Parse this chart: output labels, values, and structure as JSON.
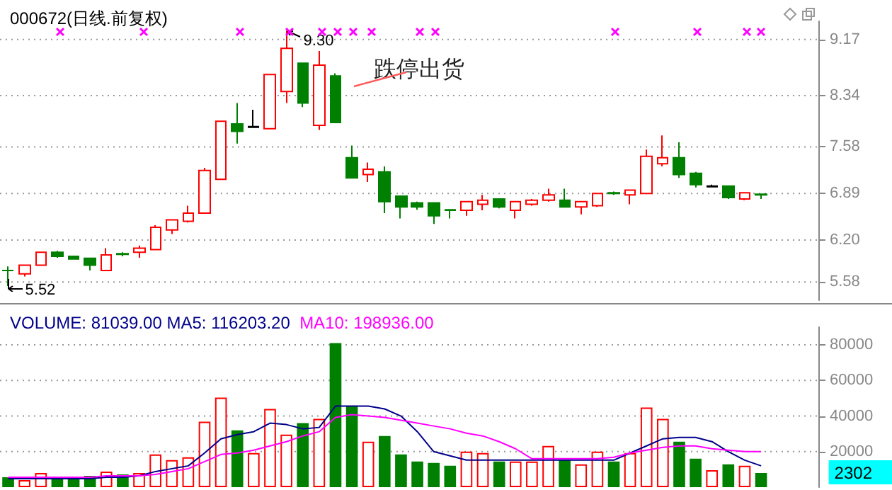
{
  "chart_data": [
    {
      "type": "candlestick",
      "title": "000672(日线.前复权)",
      "categories": [
        null,
        null,
        null,
        null,
        null,
        null,
        null,
        null,
        null,
        null,
        null,
        null,
        null,
        null,
        null,
        null,
        null,
        null,
        null,
        null,
        null,
        null,
        null,
        null,
        null,
        null,
        null,
        null,
        null,
        null,
        null,
        null,
        null,
        null,
        null,
        null,
        null,
        null,
        null,
        null,
        null,
        null,
        null,
        null,
        null,
        null,
        null,
        null,
        null,
        null
      ],
      "ohlc": [
        [
          5.75,
          5.81,
          5.52,
          5.75
        ],
        [
          5.7,
          5.83,
          5.66,
          5.83
        ],
        [
          5.83,
          6.03,
          5.83,
          6.02
        ],
        [
          6.02,
          6.04,
          5.94,
          5.96
        ],
        [
          5.96,
          5.97,
          5.91,
          5.92
        ],
        [
          5.93,
          5.94,
          5.75,
          5.83
        ],
        [
          5.75,
          6.08,
          5.75,
          5.98
        ],
        [
          6.0,
          6.02,
          5.96,
          5.99
        ],
        [
          6.02,
          6.12,
          5.94,
          6.08
        ],
        [
          6.06,
          6.42,
          6.05,
          6.39
        ],
        [
          6.35,
          6.5,
          6.29,
          6.5
        ],
        [
          6.48,
          6.71,
          6.46,
          6.6
        ],
        [
          6.6,
          7.27,
          6.6,
          7.23
        ],
        [
          7.1,
          7.97,
          7.1,
          7.96
        ],
        [
          7.92,
          8.23,
          7.63,
          7.81
        ],
        [
          7.87,
          8.13,
          7.87,
          7.88
        ],
        [
          7.85,
          8.65,
          7.85,
          8.65
        ],
        [
          8.4,
          9.3,
          8.23,
          9.04
        ],
        [
          8.82,
          8.82,
          8.17,
          8.23
        ],
        [
          7.9,
          9.0,
          7.83,
          8.79
        ],
        [
          8.63,
          8.67,
          7.94,
          7.94
        ],
        [
          7.42,
          7.6,
          7.12,
          7.12
        ],
        [
          7.17,
          7.35,
          7.06,
          7.25
        ],
        [
          7.21,
          7.29,
          6.6,
          6.77
        ],
        [
          6.85,
          6.85,
          6.52,
          6.69
        ],
        [
          6.75,
          6.77,
          6.65,
          6.69
        ],
        [
          6.75,
          6.75,
          6.44,
          6.56
        ],
        [
          6.65,
          6.65,
          6.52,
          6.64
        ],
        [
          6.64,
          6.77,
          6.56,
          6.77
        ],
        [
          6.73,
          6.87,
          6.64,
          6.79
        ],
        [
          6.81,
          6.81,
          6.67,
          6.69
        ],
        [
          6.64,
          6.77,
          6.52,
          6.77
        ],
        [
          6.73,
          6.81,
          6.71,
          6.79
        ],
        [
          6.79,
          6.96,
          6.77,
          6.87
        ],
        [
          6.79,
          6.96,
          6.69,
          6.69
        ],
        [
          6.69,
          6.77,
          6.58,
          6.77
        ],
        [
          6.71,
          6.89,
          6.69,
          6.89
        ],
        [
          6.9,
          6.92,
          6.87,
          6.89
        ],
        [
          6.87,
          6.94,
          6.73,
          6.94
        ],
        [
          6.89,
          7.54,
          6.89,
          7.44
        ],
        [
          7.33,
          7.75,
          7.29,
          7.42
        ],
        [
          7.42,
          7.65,
          7.12,
          7.17
        ],
        [
          7.19,
          7.21,
          6.98,
          7.02
        ],
        [
          6.99,
          7.02,
          6.98,
          7.0
        ],
        [
          7.0,
          7.0,
          6.81,
          6.83
        ],
        [
          6.81,
          6.9,
          6.79,
          6.9
        ],
        [
          6.88,
          6.89,
          6.81,
          6.87
        ],
        null,
        null,
        null
      ],
      "colors": [
        "#008000",
        "#ff0000",
        "#ff0000",
        "#008000",
        "#008000",
        "#008000",
        "#ff0000",
        "#008000",
        "#ff0000",
        "#ff0000",
        "#ff0000",
        "#ff0000",
        "#ff0000",
        "#ff0000",
        "#008000",
        "#000000",
        "#ff0000",
        "#ff0000",
        "#008000",
        "#ff0000",
        "#008000",
        "#008000",
        "#ff0000",
        "#008000",
        "#008000",
        "#008000",
        "#008000",
        "#008000",
        "#ff0000",
        "#ff0000",
        "#008000",
        "#ff0000",
        "#ff0000",
        "#ff0000",
        "#008000",
        "#ff0000",
        "#ff0000",
        "#008000",
        "#ff0000",
        "#ff0000",
        "#ff0000",
        "#008000",
        "#008000",
        "#000000",
        "#008000",
        "#ff0000",
        "#008000",
        null,
        null,
        null
      ],
      "ylim": [
        5.31,
        9.44
      ],
      "yticks": [
        5.58,
        {
          "value": 6.2,
          "label": "6.20"
        },
        6.89,
        7.58,
        8.34,
        9.17
      ],
      "grid": "y",
      "tick_labels": "y",
      "annotations": [
        "9.30",
        "5.52",
        "跌停出货"
      ]
    },
    {
      "type": "bar",
      "categories": [
        null,
        null,
        null,
        null,
        null,
        null,
        null,
        null,
        null,
        null,
        null,
        null,
        null,
        null,
        null,
        null,
        null,
        null,
        null,
        null,
        null,
        null,
        null,
        null,
        null,
        null,
        null,
        null,
        null,
        null,
        null,
        null,
        null,
        null,
        null,
        null,
        null,
        null,
        null,
        null,
        null,
        null,
        null,
        null,
        null,
        null,
        null,
        null,
        null,
        null
      ],
      "series": [
        {
          "type": "bar",
          "values": [
            5600,
            4000,
            8000,
            4800,
            4800,
            6400,
            8800,
            7200,
            8000,
            18400,
            15200,
            16800,
            36800,
            50400,
            32000,
            19200,
            44000,
            29600,
            36000,
            38400,
            81000,
            45600,
            25600,
            28800,
            18400,
            14400,
            13600,
            12000,
            20000,
            19200,
            14400,
            14400,
            14400,
            23200,
            15200,
            12800,
            20000,
            14400,
            19200,
            44800,
            38400,
            25600,
            16000,
            9600,
            12800,
            12000,
            8000,
            null,
            null,
            null
          ],
          "colors": [
            "#008000",
            "#ff0000",
            "#ff0000",
            "#008000",
            "#008000",
            "#008000",
            "#ff0000",
            "#008000",
            "#ff0000",
            "#ff0000",
            "#ff0000",
            "#ff0000",
            "#ff0000",
            "#ff0000",
            "#008000",
            "#ff0000",
            "#ff0000",
            "#ff0000",
            "#008000",
            "#ff0000",
            "#008000",
            "#008000",
            "#ff0000",
            "#008000",
            "#008000",
            "#008000",
            "#008000",
            "#008000",
            "#ff0000",
            "#ff0000",
            "#008000",
            "#ff0000",
            "#ff0000",
            "#ff0000",
            "#008000",
            "#ff0000",
            "#ff0000",
            "#008000",
            "#ff0000",
            "#ff0000",
            "#ff0000",
            "#008000",
            "#008000",
            "#ff0000",
            "#008000",
            "#ff0000",
            "#008000",
            null,
            null,
            null
          ]
        },
        {
          "type": "line",
          "color": "#00008b",
          "values": [
            4800,
            4800,
            4800,
            4800,
            4800,
            4800,
            5600,
            5600,
            6400,
            8800,
            10400,
            12000,
            19200,
            27200,
            29600,
            31200,
            36000,
            35200,
            32800,
            33600,
            45600,
            45600,
            45600,
            44000,
            40000,
            31200,
            20000,
            17600,
            15200,
            15200,
            15200,
            15200,
            15200,
            15200,
            15200,
            15200,
            15200,
            15200,
            19200,
            23200,
            27200,
            28000,
            28000,
            25600,
            20000,
            15200,
            12000,
            null,
            null,
            null
          ]
        },
        {
          "type": "line",
          "color": "#ff00ff",
          "values": [
            5600,
            5600,
            5600,
            5600,
            5600,
            5600,
            6400,
            6400,
            6400,
            7200,
            8800,
            10400,
            14400,
            18400,
            19200,
            20800,
            23200,
            25600,
            28800,
            31200,
            39200,
            40800,
            40000,
            39200,
            37600,
            36000,
            34400,
            32800,
            30400,
            28800,
            25600,
            21600,
            16000,
            16000,
            16000,
            16000,
            16000,
            16800,
            19200,
            20800,
            22400,
            23200,
            23200,
            21600,
            20800,
            20000,
            20000,
            null,
            null,
            null
          ]
        }
      ],
      "ylim": [
        0,
        90000
      ],
      "yticks": [
        20000,
        40000,
        60000,
        80000
      ],
      "grid": "y",
      "tick_labels": "y",
      "marker": "none",
      "annotations": [
        "VOLUME: 81039.00 MA5: 116203.20",
        "MA10: 198936.00",
        "2302"
      ]
    }
  ]
}
